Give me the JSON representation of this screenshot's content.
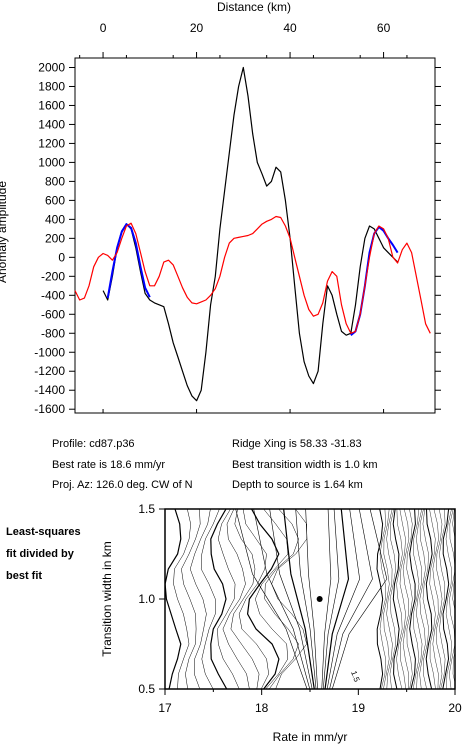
{
  "top": {
    "xlabel": "Distance (km)",
    "ylabel": "Anomaly amplitude",
    "xticks": [
      0,
      20,
      40,
      60
    ],
    "yticks": [
      2000,
      1800,
      1600,
      1400,
      1200,
      1000,
      800,
      600,
      400,
      200,
      0,
      -200,
      -400,
      -600,
      -800,
      -1000,
      -1200,
      -1400,
      -1600
    ]
  },
  "info": {
    "profile": "Profile: cd87.p36",
    "best_rate": "Best rate is 18.6 mm/yr",
    "proj_az": "Proj. Az: 126.0 deg. CW of N",
    "ridge_xing": "Ridge Xing is 58.33 -31.83",
    "transition": "Best transition width is 1.0 km",
    "depth": "Depth to source is    1.64 km"
  },
  "side_label": [
    "Least-squares",
    "fit divided by",
    "best fit"
  ],
  "bottom": {
    "xlabel": "Rate in mm/yr",
    "ylabel": "Transition width in km",
    "xticks": [
      "17",
      "18",
      "19",
      "20"
    ],
    "yticks": [
      "1.5",
      "1.0",
      "0.5"
    ],
    "contour_label": "1.5"
  },
  "chart_data": [
    {
      "type": "line",
      "xlim": [
        -6,
        71
      ],
      "ylim": [
        -1640,
        2100
      ],
      "series": [
        {
          "color": "#000000",
          "x": [
            0,
            1,
            2,
            3,
            4,
            5,
            6,
            7,
            8,
            9,
            10,
            11,
            12,
            13,
            14,
            15,
            16,
            17,
            18,
            19,
            20,
            21,
            22,
            23,
            24,
            25,
            26,
            27,
            28,
            29,
            30,
            31,
            32,
            33,
            34,
            35,
            36,
            37,
            38,
            39,
            40,
            41,
            42,
            43,
            44,
            45,
            46,
            47,
            48,
            49,
            50,
            51,
            52,
            53,
            54,
            55,
            56,
            57,
            58,
            59,
            60,
            61,
            62,
            63
          ],
          "y": [
            -350,
            -450,
            -200,
            100,
            280,
            350,
            300,
            100,
            -150,
            -380,
            -450,
            -480,
            -500,
            -520,
            -700,
            -900,
            -1050,
            -1200,
            -1350,
            -1460,
            -1510,
            -1400,
            -1000,
            -500,
            -200,
            300,
            700,
            1100,
            1500,
            1800,
            2000,
            1700,
            1300,
            1000,
            880,
            750,
            800,
            950,
            900,
            600,
            200,
            -300,
            -800,
            -1100,
            -1250,
            -1330,
            -1200,
            -700,
            -300,
            -400,
            -600,
            -780,
            -820,
            -800,
            -500,
            -100,
            200,
            330,
            300,
            200,
            100,
            50,
            0,
            -50
          ]
        },
        {
          "color": "#0000ff",
          "x": [
            1,
            2,
            3,
            4,
            5,
            6,
            7,
            8,
            9,
            10
          ],
          "y": [
            -430,
            -150,
            100,
            270,
            350,
            310,
            150,
            -100,
            -320,
            -420
          ]
        },
        {
          "color": "#0000ff",
          "x": [
            53,
            54,
            55,
            56,
            57,
            58,
            59,
            60,
            61,
            62,
            63
          ],
          "y": [
            -820,
            -780,
            -600,
            -300,
            50,
            250,
            320,
            280,
            200,
            130,
            50
          ]
        },
        {
          "color": "#ff0000",
          "x": [
            -6,
            -5,
            -4,
            -3,
            -2,
            -1,
            0,
            1,
            2,
            3,
            4,
            5,
            6,
            7,
            8,
            9,
            10,
            11,
            12,
            13,
            14,
            15,
            16,
            17,
            18,
            19,
            20,
            21,
            22,
            23,
            24,
            25,
            26,
            27,
            28,
            29,
            30,
            31,
            32,
            33,
            34,
            35,
            36,
            37,
            38,
            39,
            40,
            41,
            42,
            43,
            44,
            45,
            46,
            47,
            48,
            49,
            50,
            51,
            52,
            53,
            54,
            55,
            56,
            57,
            58,
            59,
            60,
            61,
            62,
            63,
            64,
            65,
            66,
            67,
            68,
            69,
            70
          ],
          "y": [
            -350,
            -450,
            -430,
            -300,
            -100,
            0,
            40,
            20,
            -30,
            50,
            200,
            330,
            360,
            250,
            50,
            -150,
            -300,
            -300,
            -200,
            -50,
            -30,
            -80,
            -200,
            -320,
            -420,
            -480,
            -490,
            -470,
            -450,
            -400,
            -330,
            -200,
            0,
            150,
            200,
            210,
            220,
            230,
            250,
            300,
            350,
            380,
            400,
            430,
            420,
            330,
            200,
            0,
            -200,
            -400,
            -550,
            -620,
            -600,
            -480,
            -250,
            -150,
            -200,
            -500,
            -700,
            -800,
            -780,
            -600,
            -300,
            0,
            250,
            330,
            300,
            200,
            0,
            -60,
            80,
            150,
            50,
            -200,
            -450,
            -700,
            -800
          ]
        }
      ]
    },
    {
      "type": "contour",
      "title": "Least-squares fit divided by best fit",
      "xlabel": "Rate in mm/yr",
      "ylabel": "Transition width in km",
      "xlim": [
        17,
        20
      ],
      "ylim": [
        0.5,
        1.5
      ],
      "best_fit": {
        "x": 18.6,
        "y": 1.0
      },
      "contour_label": "1.5"
    }
  ]
}
